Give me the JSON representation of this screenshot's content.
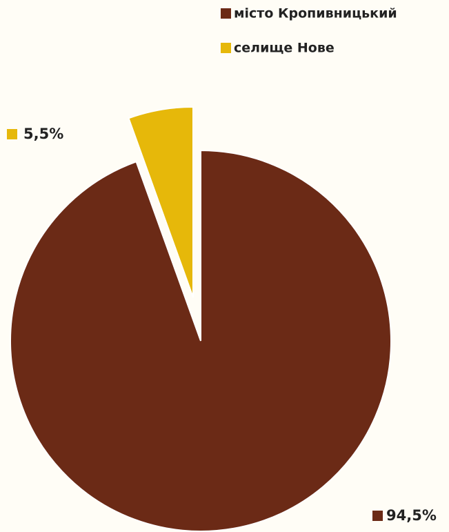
{
  "chart_data": {
    "type": "pie",
    "categories": [
      "місто Кропивницький",
      "селище Нове"
    ],
    "values": [
      94.5,
      5.5
    ],
    "value_labels": [
      "94,5%",
      "5,5%"
    ],
    "colors": [
      "#6b2a16",
      "#e6b80a"
    ],
    "exploded": [
      false,
      true
    ]
  }
}
